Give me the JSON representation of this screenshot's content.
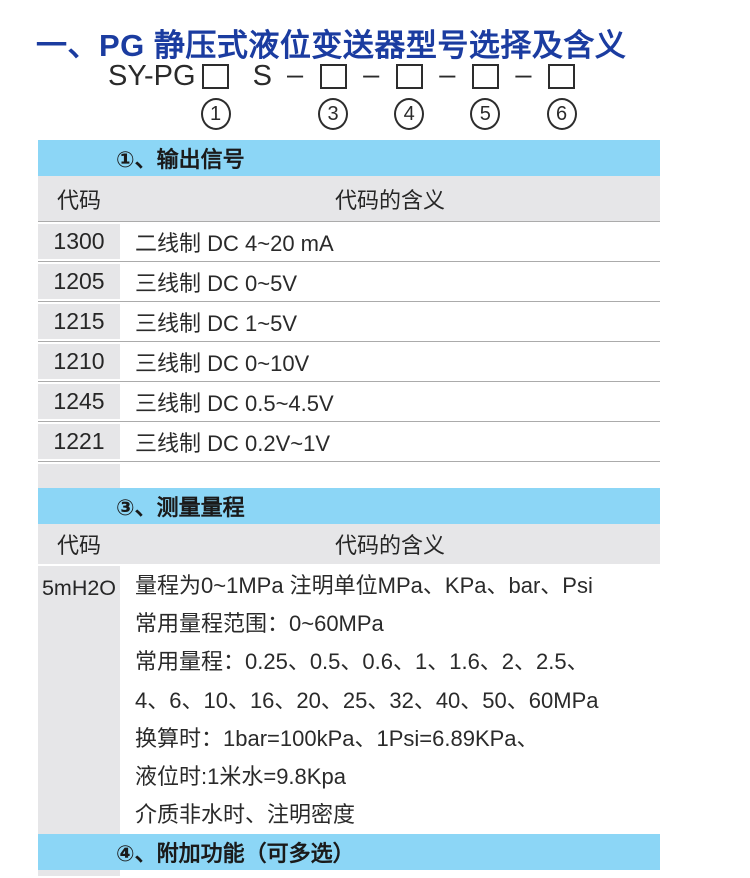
{
  "title": "一、PG 静压式液位变送器型号选择及含义",
  "model": {
    "prefix": "SY-PG",
    "s_label": "S",
    "dash": "–",
    "circles": [
      "1",
      "3",
      "4",
      "5",
      "6"
    ]
  },
  "tables": [
    {
      "section_header": "①、输出信号",
      "col_code": "代码",
      "col_meaning": "代码的含义",
      "rows": [
        {
          "code": "1300",
          "meaning": "二线制 DC 4~20 mA"
        },
        {
          "code": "1205",
          "meaning": "三线制 DC 0~5V"
        },
        {
          "code": "1215",
          "meaning": "三线制 DC 1~5V"
        },
        {
          "code": "1210",
          "meaning": "三线制 DC 0~10V"
        },
        {
          "code": "1245",
          "meaning": "三线制 DC 0.5~4.5V"
        },
        {
          "code": "1221",
          "meaning": "三线制 DC 0.2V~1V"
        }
      ]
    },
    {
      "section_header": "③、测量量程",
      "col_code": "代码",
      "col_meaning": "代码的含义",
      "code": "5mH2O",
      "lines": [
        "量程为0~1MPa 注明单位MPa、KPa、bar、Psi",
        "常用量程范围：0~60MPa",
        "常用量程：0.25、0.5、0.6、1、1.6、2、2.5、",
        "4、6、10、16、20、25、32、40、50、60MPa",
        "换算时：1bar=100kPa、1Psi=6.89KPa、",
        "液位时:1米水=9.8Kpa",
        "介质非水时、注明密度"
      ]
    }
  ],
  "footer_section_header": "④、附加功能（可多选）",
  "colors": {
    "title_blue": "#1B3CA0",
    "section_header_blue": "#8CD6F6",
    "code_cell_gray": "#E6E6E8",
    "row_line_gray": "#ABABAB"
  }
}
